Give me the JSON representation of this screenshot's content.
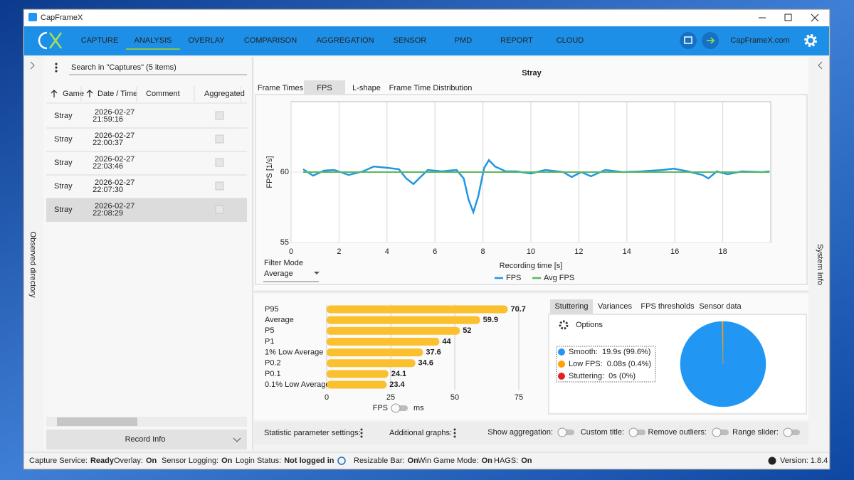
{
  "window": {
    "title": "CapFrameX"
  },
  "nav": {
    "items": [
      "CAPTURE",
      "ANALYSIS",
      "OVERLAY",
      "COMPARISON",
      "AGGREGATION",
      "SENSOR",
      "PMD",
      "REPORT",
      "CLOUD"
    ],
    "active_index": 1,
    "link": "CapFrameX.com"
  },
  "left_panel": {
    "side_label": "Observed directory",
    "search_placeholder": "Search in \"Captures\" (5 items)",
    "columns": [
      "Game",
      "Date / Time",
      "Comment",
      "Aggregated"
    ],
    "rows": [
      {
        "game": "Stray",
        "date": "2026-02-27",
        "time": "21:59:16"
      },
      {
        "game": "Stray",
        "date": "2026-02-27",
        "time": "22:00:37"
      },
      {
        "game": "Stray",
        "date": "2026-02-27",
        "time": "22:03:46"
      },
      {
        "game": "Stray",
        "date": "2026-02-27",
        "time": "22:07:30"
      },
      {
        "game": "Stray",
        "date": "2026-02-27",
        "time": "22:08:29"
      }
    ],
    "selected_index": 4,
    "record_info": "Record Info"
  },
  "chart_tabs": {
    "items": [
      "Frame Times",
      "FPS",
      "L-shape",
      "Frame Time Distribution"
    ],
    "active_index": 1
  },
  "filter": {
    "label": "Filter Mode",
    "value": "Average"
  },
  "chart_data": [
    {
      "type": "line",
      "title": "Stray",
      "x_label": "Recording time [s]",
      "y_label": "FPS [1/s]",
      "xlim": [
        0,
        20
      ],
      "ylim": [
        55,
        65
      ],
      "xticks": [
        0,
        2,
        4,
        6,
        8,
        10,
        12,
        14,
        16,
        18
      ],
      "yticks": [
        55,
        60
      ],
      "grid": true,
      "legend": "bottom",
      "series": [
        {
          "name": "FPS",
          "color": "#2196e3",
          "x": [
            0.5,
            0.92,
            1.37,
            1.8,
            2.4,
            3.0,
            3.45,
            4.05,
            4.5,
            4.8,
            5.1,
            5.4,
            5.7,
            6.3,
            6.9,
            7.2,
            7.4,
            7.6,
            7.8,
            8.05,
            8.25,
            8.5,
            8.95,
            9.4,
            10.0,
            10.6,
            11.35,
            11.7,
            12.1,
            12.5,
            13.1,
            13.85,
            14.6,
            15.5,
            15.95,
            16.55,
            17.15,
            17.4,
            17.75,
            18.2,
            18.8,
            19.65,
            19.95
          ],
          "values": [
            60.2,
            59.75,
            60.1,
            60.15,
            59.8,
            60.05,
            60.4,
            60.3,
            60.2,
            59.55,
            59.15,
            59.65,
            60.15,
            60.05,
            60.15,
            59.55,
            58.05,
            57.15,
            58.25,
            60.3,
            60.85,
            60.4,
            60.05,
            60.05,
            59.9,
            60.15,
            60.0,
            59.65,
            60.0,
            59.7,
            60.15,
            60.0,
            60.05,
            60.15,
            60.25,
            60.05,
            59.8,
            59.55,
            60.05,
            59.85,
            60.05,
            60.0,
            60.05
          ]
        },
        {
          "name": "Avg FPS",
          "color": "#5cb85c",
          "x": [
            0.5,
            19.95
          ],
          "values": [
            60,
            60
          ]
        }
      ]
    },
    {
      "type": "bar",
      "orientation": "horizontal",
      "categories": [
        "P95",
        "Average",
        "P5",
        "P1",
        "1% Low Average",
        "P0.2",
        "P0.1",
        "0.1% Low Average"
      ],
      "values": [
        70.7,
        59.9,
        52,
        44,
        37.6,
        34.6,
        24.1,
        23.4
      ],
      "color": "#fbc02d",
      "xlim": [
        0,
        85
      ],
      "xticks": [
        0,
        25,
        50,
        75
      ],
      "grid": true
    },
    {
      "type": "pie",
      "categories": [
        "Smooth:",
        "Low FPS:",
        "Stuttering:"
      ],
      "values": [
        99.6,
        0.4,
        0
      ],
      "value_labels": [
        "19.9s (99.6%)",
        "0.08s (0.4%)",
        "0s (0%)"
      ],
      "colors": [
        "#2196f3",
        "#ffa000",
        "#e62020"
      ]
    }
  ],
  "bar_toggle": {
    "left": "FPS",
    "right": "ms"
  },
  "stats_tabs": {
    "items": [
      "Stuttering",
      "Variances",
      "FPS thresholds",
      "Sensor data"
    ],
    "active_index": 0,
    "options": "Options"
  },
  "bottom_bar": {
    "menus": [
      "Statistic parameter settings:",
      "Additional graphs:"
    ],
    "toggles": [
      "Show aggregation:",
      "Custom title:",
      "Remove outliers:",
      "Range slider:"
    ]
  },
  "right_panel": {
    "side_label": "System Info"
  },
  "status_bar": {
    "items": [
      {
        "label": "Capture Service:",
        "value": "Ready",
        "color": "#2ea53a"
      },
      {
        "label": "Overlay:",
        "value": "On",
        "color": "#2ea53a"
      },
      {
        "label": "Sensor Logging:",
        "value": "On",
        "color": "#2ea53a"
      },
      {
        "label": "Login Status:",
        "value": "Not logged in",
        "color": "#e5461d"
      },
      {
        "label": "Resizable Bar:",
        "value": "On",
        "color": "#2ea53a"
      },
      {
        "label": "Win Game Mode:",
        "value": "On",
        "color": "#2ea53a"
      },
      {
        "label": "HAGS:",
        "value": "On",
        "color": "#2ea53a"
      }
    ],
    "version": "Version: 1.8.4"
  }
}
